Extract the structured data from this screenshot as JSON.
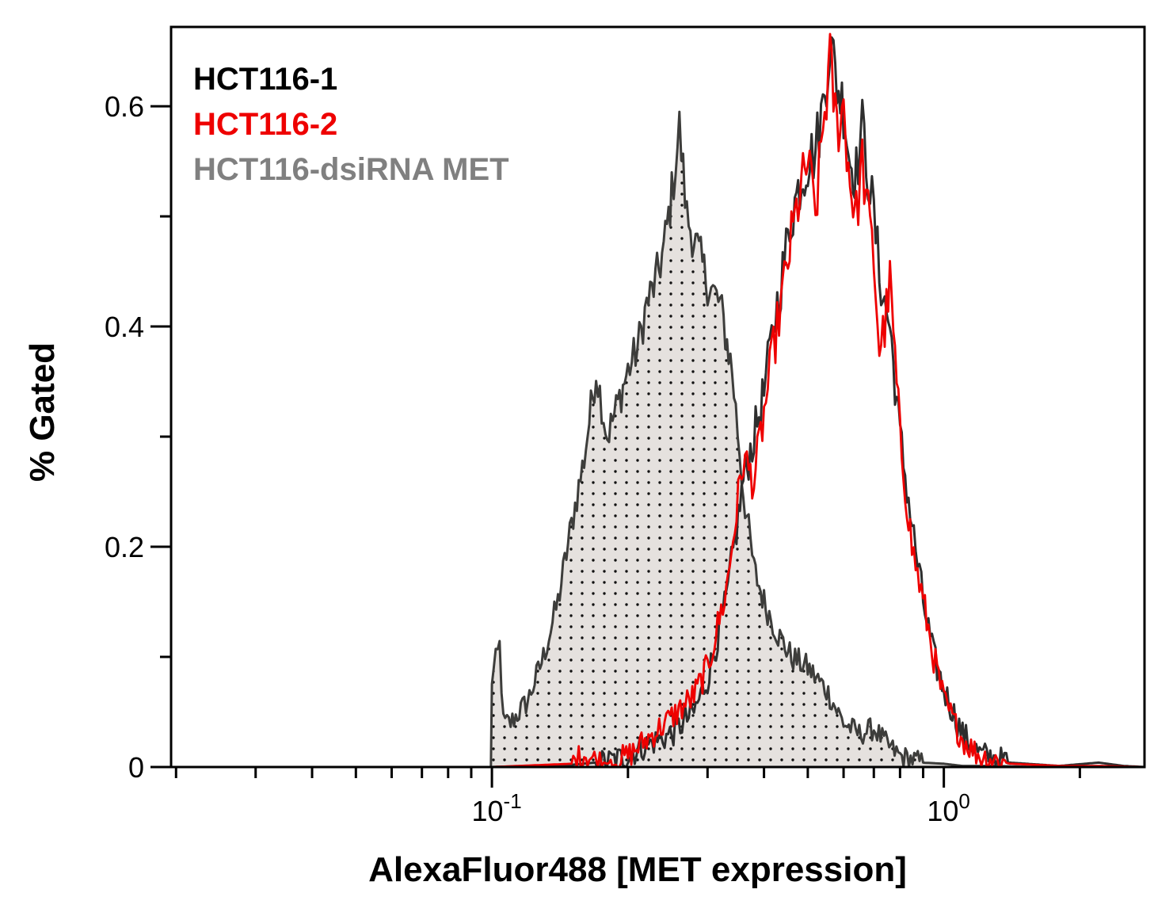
{
  "chart_data": {
    "type": "area",
    "title": "",
    "xlabel": "AlexaFluor488 [MET expression]",
    "ylabel": "% Gated",
    "x_scale": "log",
    "xlim": [
      0.0195,
      2.78
    ],
    "ylim": [
      0,
      0.672
    ],
    "x_major_ticks": [
      0.1,
      1.0
    ],
    "x_tick_labels": [
      {
        "base": "10",
        "exp": "-1"
      },
      {
        "base": "10",
        "exp": "0"
      }
    ],
    "y_major_ticks": [
      0,
      0.2,
      0.4,
      0.6
    ],
    "y_tick_labels": [
      "0",
      "0.2",
      "0.4",
      "0.6"
    ],
    "y_minor_ticks": [
      0.1,
      0.3,
      0.5
    ],
    "grid": false,
    "legend_position": "top-left",
    "series": [
      {
        "name": "HCT116-1",
        "color": "#000000",
        "fill": false,
        "x": [
          0.0195,
          0.1,
          0.15,
          0.18,
          0.2,
          0.22,
          0.25,
          0.28,
          0.3,
          0.33,
          0.36,
          0.38,
          0.4,
          0.42,
          0.44,
          0.46,
          0.48,
          0.5,
          0.52,
          0.54,
          0.56,
          0.58,
          0.6,
          0.62,
          0.64,
          0.66,
          0.68,
          0.7,
          0.72,
          0.74,
          0.76,
          0.8,
          0.85,
          0.9,
          0.95,
          1.0,
          1.1,
          1.2,
          1.4,
          1.8,
          2.2,
          2.5,
          2.78
        ],
        "y": [
          0,
          0,
          0.002,
          0.005,
          0.01,
          0.02,
          0.03,
          0.05,
          0.08,
          0.15,
          0.26,
          0.3,
          0.34,
          0.4,
          0.45,
          0.5,
          0.53,
          0.55,
          0.56,
          0.6,
          0.66,
          0.62,
          0.6,
          0.55,
          0.54,
          0.58,
          0.54,
          0.5,
          0.45,
          0.42,
          0.4,
          0.3,
          0.22,
          0.15,
          0.1,
          0.07,
          0.03,
          0.012,
          0.004,
          0.001,
          0.004,
          0.001,
          0
        ]
      },
      {
        "name": "HCT116-2",
        "color": "#ee0000",
        "fill": false,
        "x": [
          0.0195,
          0.1,
          0.15,
          0.16,
          0.17,
          0.18,
          0.2,
          0.22,
          0.25,
          0.28,
          0.3,
          0.33,
          0.36,
          0.38,
          0.4,
          0.42,
          0.44,
          0.46,
          0.48,
          0.5,
          0.52,
          0.54,
          0.56,
          0.58,
          0.6,
          0.62,
          0.64,
          0.66,
          0.68,
          0.7,
          0.72,
          0.74,
          0.76,
          0.8,
          0.85,
          0.9,
          0.95,
          1.0,
          1.1,
          1.2,
          1.4,
          1.8,
          2.2,
          2.78
        ],
        "y": [
          0,
          0,
          0.003,
          0.012,
          0.006,
          0.003,
          0.01,
          0.025,
          0.045,
          0.065,
          0.09,
          0.16,
          0.28,
          0.26,
          0.32,
          0.38,
          0.43,
          0.48,
          0.52,
          0.55,
          0.5,
          0.58,
          0.64,
          0.58,
          0.6,
          0.53,
          0.5,
          0.55,
          0.5,
          0.46,
          0.38,
          0.4,
          0.44,
          0.3,
          0.2,
          0.15,
          0.1,
          0.06,
          0.025,
          0.01,
          0.003,
          0.001,
          0.001,
          0
        ]
      },
      {
        "name": "HCT116-dsiRNA MET",
        "color": "#808080",
        "fill": true,
        "x": [
          0.0195,
          0.0995,
          0.1,
          0.104,
          0.106,
          0.11,
          0.12,
          0.13,
          0.14,
          0.15,
          0.16,
          0.17,
          0.175,
          0.18,
          0.19,
          0.2,
          0.21,
          0.22,
          0.23,
          0.24,
          0.25,
          0.26,
          0.27,
          0.28,
          0.3,
          0.32,
          0.34,
          0.36,
          0.38,
          0.4,
          0.43,
          0.46,
          0.5,
          0.55,
          0.6,
          0.65,
          0.7,
          0.75,
          0.8,
          0.9,
          1.0,
          1.1,
          1.3,
          1.6,
          2.78
        ],
        "y": [
          0,
          0,
          0.08,
          0.11,
          0.04,
          0.04,
          0.06,
          0.1,
          0.15,
          0.22,
          0.28,
          0.36,
          0.33,
          0.3,
          0.33,
          0.36,
          0.38,
          0.42,
          0.44,
          0.47,
          0.52,
          0.58,
          0.5,
          0.48,
          0.44,
          0.42,
          0.36,
          0.25,
          0.18,
          0.15,
          0.12,
          0.1,
          0.09,
          0.07,
          0.04,
          0.03,
          0.035,
          0.02,
          0.01,
          0.004,
          0.003,
          0.001,
          0.001,
          0,
          0
        ]
      }
    ]
  }
}
